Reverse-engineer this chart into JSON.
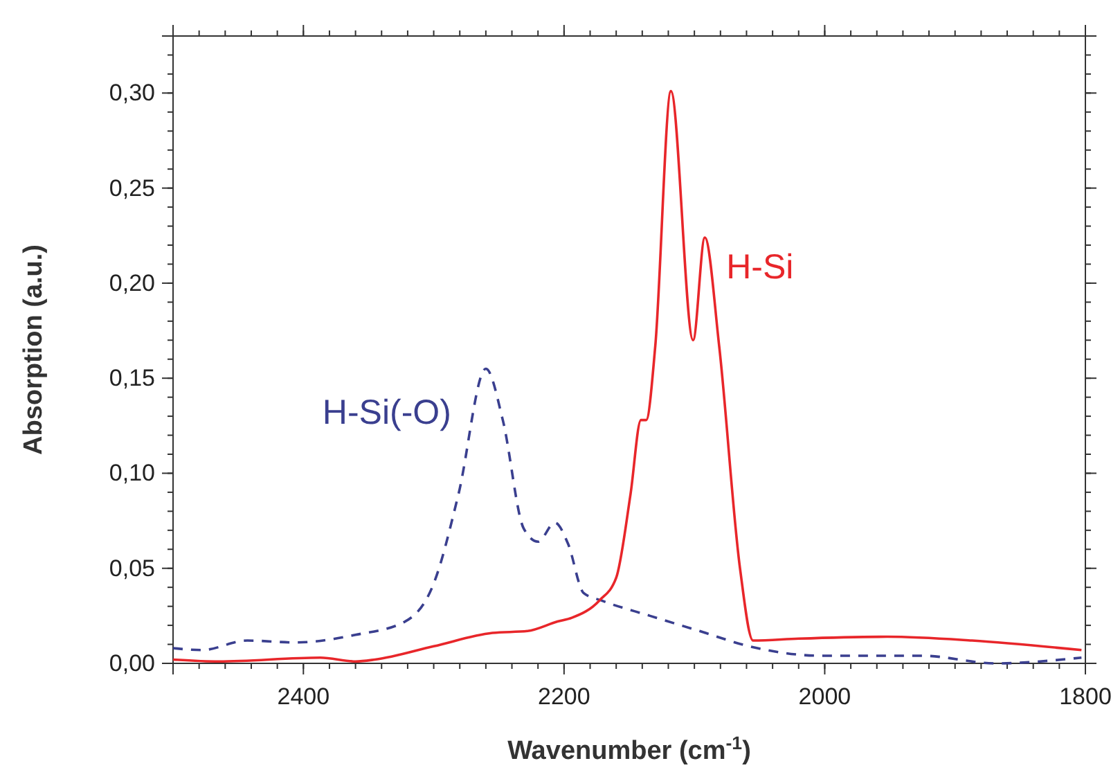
{
  "chart_data": {
    "type": "line",
    "xlabel": "Wavenumber (cm$^{-1}$)",
    "ylabel": "Absorption (a.u.)",
    "xlim": [
      2500,
      1800
    ],
    "xticks": [
      2400,
      2200,
      2000,
      1800
    ],
    "ylim": [
      0,
      0.33
    ],
    "yticks": [
      {
        "value": 0,
        "label": "0,00"
      },
      {
        "value": 0.05,
        "label": "0,05"
      },
      {
        "value": 0.1,
        "label": "0,10"
      },
      {
        "value": 0.15,
        "label": "0,15"
      },
      {
        "value": 0.2,
        "label": "0,20"
      },
      {
        "value": 0.25,
        "label": "0,25"
      },
      {
        "value": 0.3,
        "label": "0,30"
      }
    ],
    "grid": false,
    "series": [
      {
        "name": "H-Si(-O)",
        "color": "#3a3f8f",
        "line_style": "dashed",
        "x": [
          2500,
          2478,
          2443,
          2406,
          2360,
          2322,
          2300,
          2281,
          2260,
          2247,
          2231,
          2220,
          2207,
          2197,
          2185,
          2171,
          2134,
          2096,
          2058,
          2002,
          1925,
          1869,
          1803
        ],
        "values": [
          0.008,
          0.007,
          0.012,
          0.011,
          0.015,
          0.022,
          0.042,
          0.089,
          0.155,
          0.128,
          0.071,
          0.064,
          0.074,
          0.063,
          0.037,
          0.033,
          0.025,
          0.017,
          0.009,
          0.004,
          0.004,
          0.0,
          0.003
        ]
      },
      {
        "name": "H-Si",
        "color": "#e8262a",
        "line_style": "solid",
        "x": [
          2500,
          2465,
          2387,
          2360,
          2345,
          2300,
          2255,
          2228,
          2205,
          2194,
          2173,
          2160,
          2149,
          2141,
          2137,
          2130,
          2118,
          2101,
          2092,
          2081,
          2065,
          2055,
          2020,
          1952,
          1887,
          1803
        ],
        "values": [
          0.002,
          0.001,
          0.003,
          0.001,
          0.002,
          0.009,
          0.016,
          0.017,
          0.022,
          0.024,
          0.033,
          0.045,
          0.089,
          0.128,
          0.128,
          0.167,
          0.301,
          0.17,
          0.224,
          0.167,
          0.05,
          0.012,
          0.013,
          0.014,
          0.012,
          0.007
        ]
      }
    ]
  }
}
